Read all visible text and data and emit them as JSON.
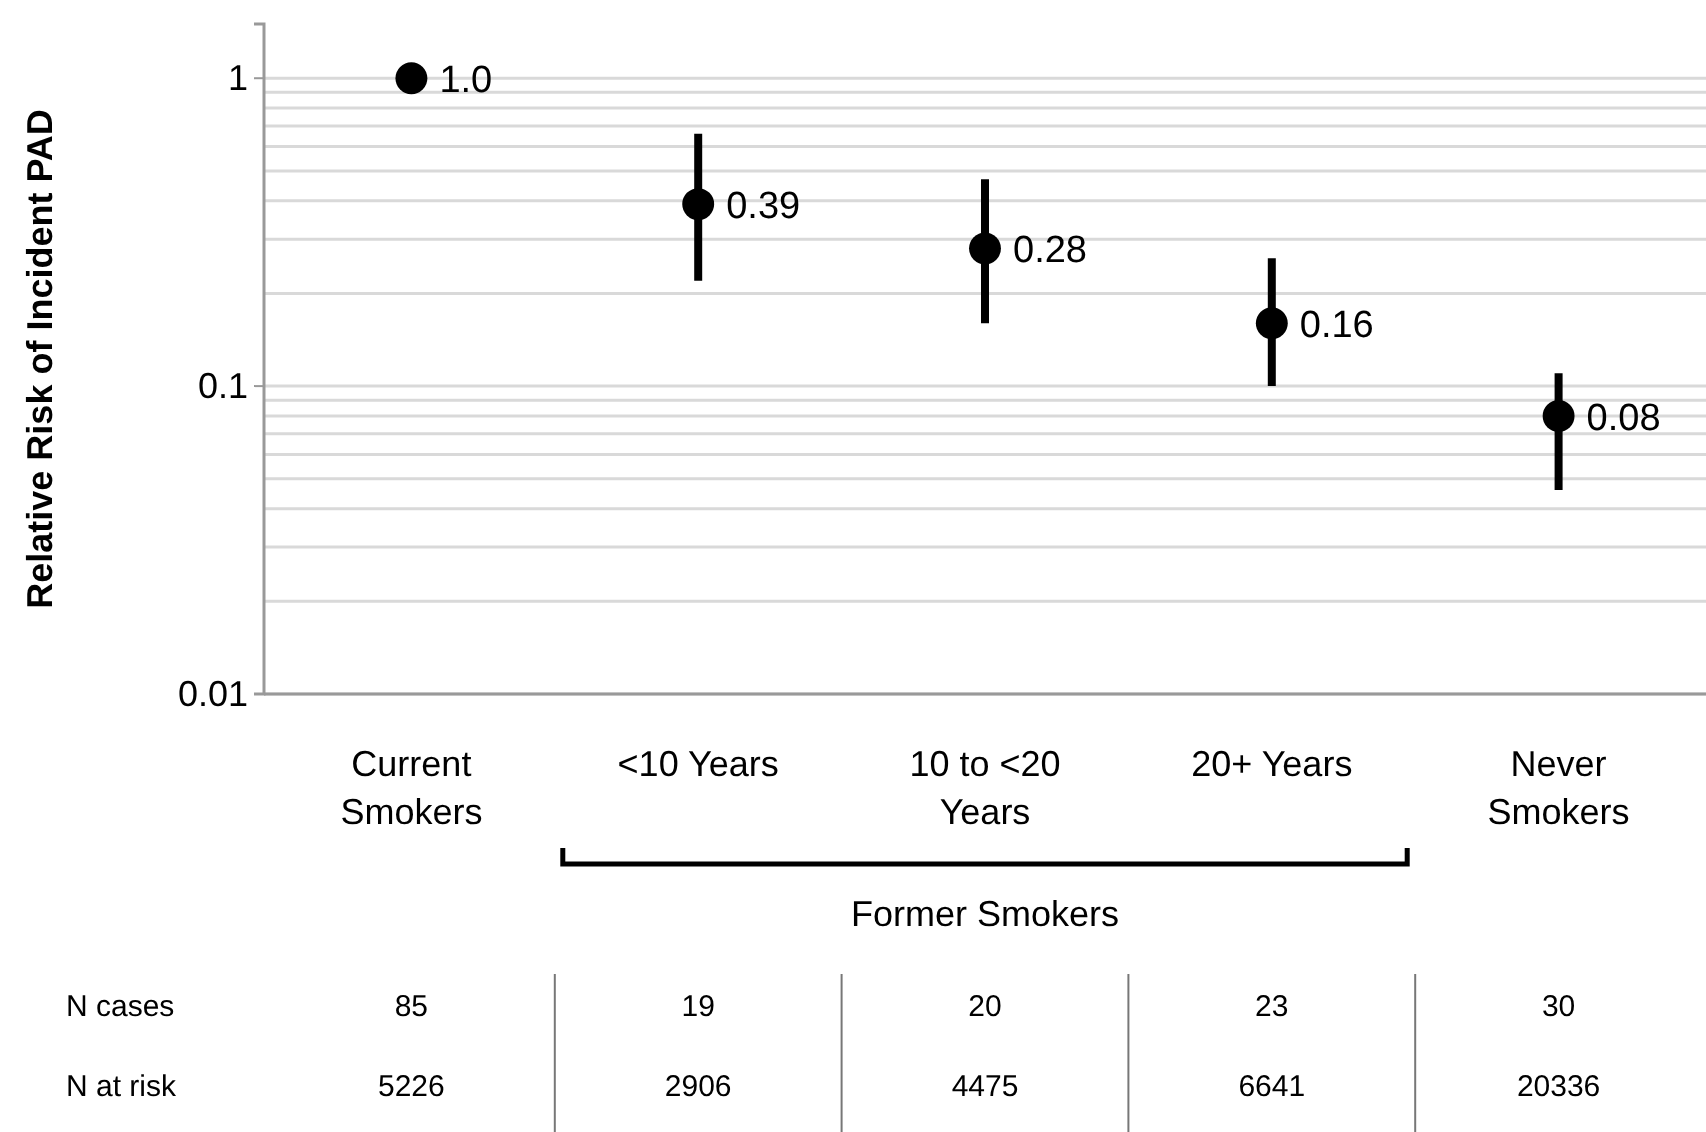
{
  "chart_data": {
    "type": "scatter",
    "ylabel": "Relative Risk of Incident PAD",
    "categories": [
      "Current Smokers",
      "<10 Years",
      "10 to <20 Years",
      "20+ Years",
      "Never Smokers"
    ],
    "series": [
      {
        "color": "#000000",
        "values": [
          1,
          0.39,
          0.28,
          0.16,
          0.08
        ],
        "errors": [
          null,
          [
            0.22,
            0.66
          ],
          [
            0.16,
            0.47
          ],
          [
            0.1,
            0.26
          ],
          [
            0.046,
            0.11
          ]
        ],
        "value_labels": [
          "1.0",
          "0.39",
          "0.28",
          "0.16",
          "0.08"
        ]
      }
    ],
    "log": true,
    "ylim": [
      0.01,
      1.5
    ],
    "yticks": [
      0.01,
      {
        "value": 0.02,
        "label": null
      },
      {
        "value": 0.03,
        "label": null
      },
      {
        "value": 0.04,
        "label": null
      },
      {
        "value": 0.05,
        "label": null
      },
      {
        "value": 0.06,
        "label": null
      },
      {
        "value": 0.07,
        "label": null
      },
      {
        "value": 0.08,
        "label": null
      },
      {
        "value": 0.09,
        "label": null
      },
      0.1,
      {
        "value": 0.2,
        "label": null
      },
      {
        "value": 0.3,
        "label": null
      },
      {
        "value": 0.4,
        "label": null
      },
      {
        "value": 0.5,
        "label": null
      },
      {
        "value": 0.6,
        "label": null
      },
      {
        "value": 0.7,
        "label": null
      },
      {
        "value": 0.8,
        "label": null
      },
      {
        "value": 0.9,
        "label": null
      },
      1
    ],
    "grid": "y",
    "marker": "circle",
    "annotations": [
      "Former Smokers",
      "N cases",
      "85",
      "19",
      "20",
      "23",
      "30",
      "N at risk",
      "5226",
      "2906",
      "4475",
      "6641",
      "20336"
    ]
  }
}
